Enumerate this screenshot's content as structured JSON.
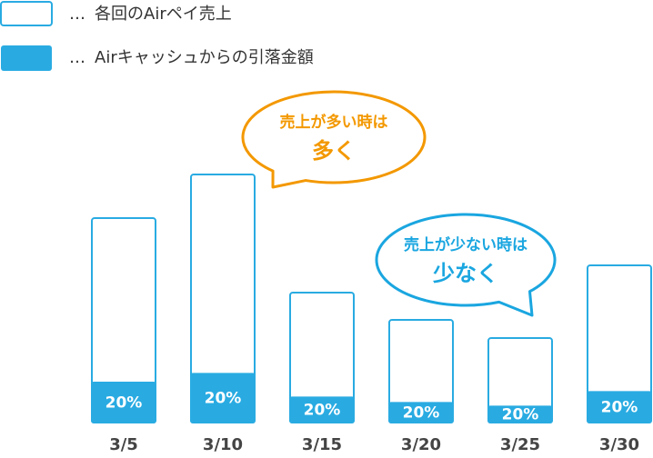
{
  "chart_data": {
    "type": "bar",
    "legend_marker": "…",
    "categories": [
      "3/5",
      "3/10",
      "3/15",
      "3/20",
      "3/25",
      "3/30"
    ],
    "series": [
      {
        "name": "各回のAirペイ売上",
        "color": "#29abe2",
        "values": [
          225,
          273,
          143,
          113,
          93,
          173
        ]
      },
      {
        "name": "Airキャッシュからの引落金額",
        "color": "#29abe2",
        "values": [
          20,
          20,
          20,
          20,
          20,
          20
        ],
        "value_labels": [
          "20%",
          "20%",
          "20%",
          "20%",
          "20%",
          "20%"
        ]
      }
    ],
    "annotations": [
      {
        "lines": [
          "売上が多い時は",
          "多く"
        ],
        "color": "#f39800"
      },
      {
        "lines": [
          "売上が少ない時は",
          "少なく"
        ],
        "color": "#1aa6e0"
      }
    ]
  }
}
